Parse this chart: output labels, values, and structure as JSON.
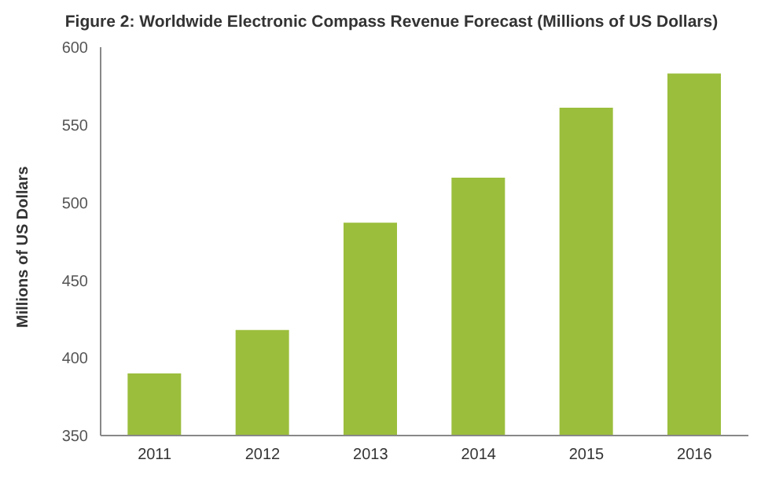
{
  "chart_data": {
    "type": "bar",
    "title": "Figure 2: Worldwide Electronic Compass Revenue Forecast (Millions of US Dollars)",
    "ylabel": "Millions of US Dollars",
    "categories": [
      "2011",
      "2012",
      "2013",
      "2014",
      "2015",
      "2016"
    ],
    "values": [
      390,
      418,
      487,
      516,
      561,
      583
    ],
    "color": "#9bbe3c",
    "ylim": [
      350,
      600
    ],
    "yticks": [
      350,
      400,
      450,
      500,
      550,
      600
    ],
    "grid": false,
    "legend": false
  }
}
